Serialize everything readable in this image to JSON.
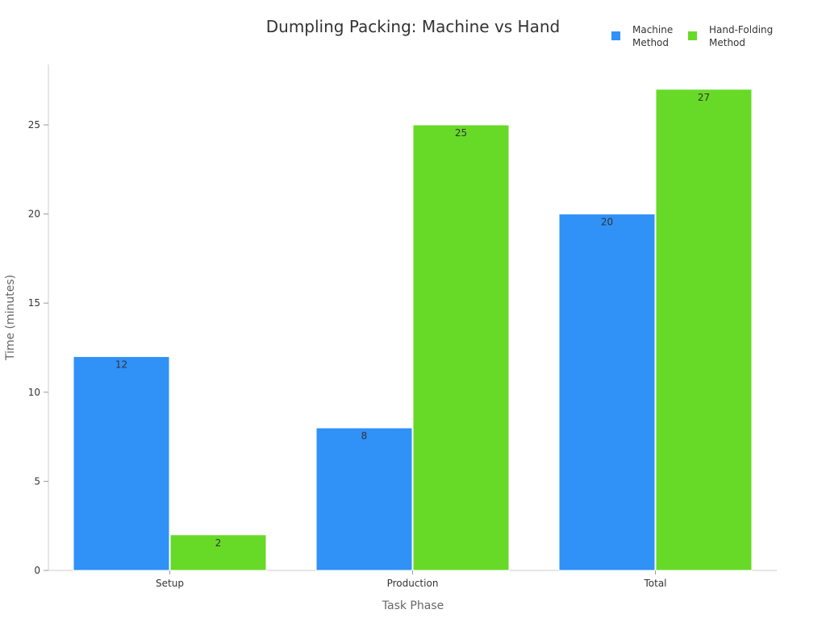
{
  "chart_data": {
    "type": "bar",
    "title": "Dumpling Packing: Machine vs Hand",
    "xlabel": "Task Phase",
    "ylabel": "Time (minutes)",
    "categories": [
      "Setup",
      "Production",
      "Total"
    ],
    "series": [
      {
        "name": "Machine\nMethod",
        "color": "#3091f7",
        "values": [
          12,
          8,
          20
        ]
      },
      {
        "name": "Hand-Folding\nMethod",
        "color": "#67da28",
        "values": [
          2,
          25,
          27
        ]
      }
    ],
    "ylim": [
      0,
      28.4
    ],
    "yticks": [
      0,
      5,
      10,
      15,
      20,
      25
    ],
    "grid": false,
    "legend": "top-right"
  }
}
